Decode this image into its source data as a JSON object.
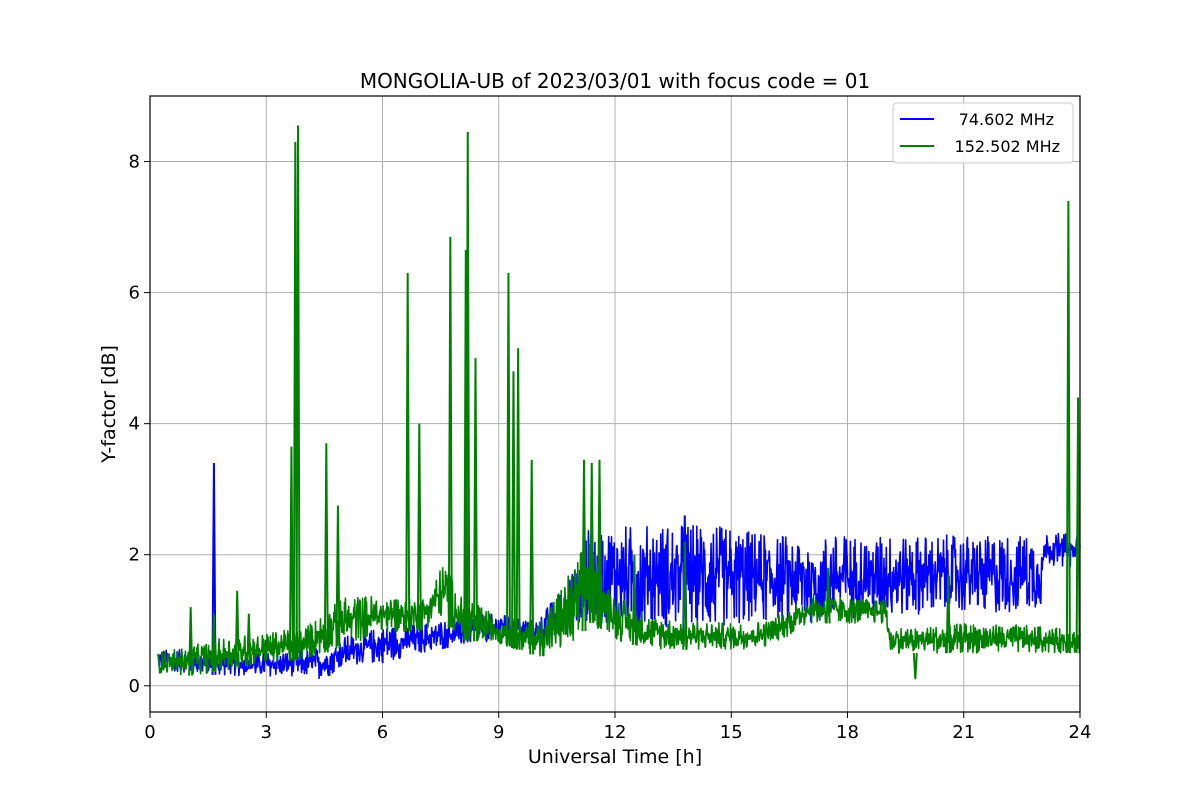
{
  "chart_data": {
    "type": "line",
    "title": "MONGOLIA-UB of 2023/03/01 with focus code = 01",
    "xlabel": "Universal Time [h]",
    "ylabel": "Y-factor [dB]",
    "xlim": [
      0,
      24
    ],
    "ylim": [
      -0.4,
      9.0
    ],
    "xticks": [
      "0",
      "3",
      "6",
      "9",
      "12",
      "15",
      "18",
      "21",
      "24"
    ],
    "yticks": [
      "0",
      "2",
      "4",
      "6",
      "8"
    ],
    "grid": true,
    "legend_position": "top-right",
    "series": [
      {
        "name": "74.602 MHz",
        "color": "#0000ff",
        "low": [
          [
            0.2,
            0.25
          ],
          [
            1.0,
            0.2
          ],
          [
            2.0,
            0.15
          ],
          [
            3.0,
            0.15
          ],
          [
            4.0,
            0.15
          ],
          [
            4.5,
            0.1
          ],
          [
            5.0,
            0.3
          ],
          [
            6.0,
            0.35
          ],
          [
            7.0,
            0.5
          ],
          [
            8.0,
            0.6
          ],
          [
            9.0,
            0.7
          ],
          [
            10.0,
            0.65
          ],
          [
            11.0,
            0.8
          ],
          [
            11.3,
            1.0
          ],
          [
            12.0,
            0.9
          ],
          [
            13.0,
            0.9
          ],
          [
            14.0,
            0.85
          ],
          [
            15.0,
            0.9
          ],
          [
            16.0,
            1.0
          ],
          [
            17.0,
            0.95
          ],
          [
            18.0,
            1.0
          ],
          [
            19.0,
            1.05
          ],
          [
            20.0,
            1.1
          ],
          [
            21.0,
            1.1
          ],
          [
            22.0,
            1.1
          ],
          [
            23.0,
            1.2
          ],
          [
            23.1,
            1.85
          ],
          [
            24.0,
            1.8
          ]
        ],
        "high": [
          [
            0.2,
            0.55
          ],
          [
            1.0,
            0.55
          ],
          [
            2.0,
            0.5
          ],
          [
            3.0,
            0.5
          ],
          [
            4.0,
            0.55
          ],
          [
            4.5,
            0.6
          ],
          [
            5.0,
            0.75
          ],
          [
            6.0,
            0.9
          ],
          [
            7.0,
            0.95
          ],
          [
            8.0,
            1.05
          ],
          [
            9.0,
            1.1
          ],
          [
            10.0,
            1.0
          ],
          [
            11.0,
            1.8
          ],
          [
            11.3,
            2.4
          ],
          [
            12.0,
            2.45
          ],
          [
            13.0,
            2.45
          ],
          [
            14.0,
            2.5
          ],
          [
            15.0,
            2.4
          ],
          [
            16.0,
            2.35
          ],
          [
            17.0,
            2.3
          ],
          [
            18.0,
            2.3
          ],
          [
            19.0,
            2.3
          ],
          [
            20.0,
            2.3
          ],
          [
            21.0,
            2.3
          ],
          [
            22.0,
            2.3
          ],
          [
            23.0,
            2.3
          ],
          [
            23.1,
            2.35
          ],
          [
            24.0,
            2.3
          ]
        ],
        "spikes": [
          [
            1.65,
            3.4
          ],
          [
            11.4,
            2.55
          ],
          [
            13.8,
            2.6
          ]
        ]
      },
      {
        "name": "152.502 MHz",
        "color": "#008000",
        "low": [
          [
            0.2,
            0.2
          ],
          [
            1.0,
            0.15
          ],
          [
            2.0,
            0.25
          ],
          [
            3.0,
            0.35
          ],
          [
            4.0,
            0.4
          ],
          [
            5.0,
            0.6
          ],
          [
            6.0,
            0.8
          ],
          [
            7.0,
            0.85
          ],
          [
            7.6,
            1.0
          ],
          [
            8.0,
            0.7
          ],
          [
            9.0,
            0.65
          ],
          [
            10.0,
            0.45
          ],
          [
            11.0,
            0.5
          ],
          [
            11.3,
            1.0
          ],
          [
            12.0,
            0.7
          ],
          [
            13.0,
            0.55
          ],
          [
            14.0,
            0.55
          ],
          [
            15.0,
            0.55
          ],
          [
            16.0,
            0.6
          ],
          [
            17.0,
            0.95
          ],
          [
            18.0,
            0.95
          ],
          [
            19.0,
            0.95
          ],
          [
            19.1,
            0.5
          ],
          [
            20.0,
            0.5
          ],
          [
            21.0,
            0.5
          ],
          [
            22.0,
            0.5
          ],
          [
            23.0,
            0.5
          ],
          [
            24.0,
            0.5
          ]
        ],
        "high": [
          [
            0.2,
            0.5
          ],
          [
            1.0,
            0.6
          ],
          [
            2.0,
            0.75
          ],
          [
            3.0,
            0.8
          ],
          [
            4.0,
            0.9
          ],
          [
            5.0,
            1.35
          ],
          [
            6.0,
            1.4
          ],
          [
            7.0,
            1.3
          ],
          [
            7.6,
            1.9
          ],
          [
            8.0,
            1.4
          ],
          [
            9.0,
            1.05
          ],
          [
            10.0,
            0.95
          ],
          [
            11.0,
            1.9
          ],
          [
            11.3,
            2.3
          ],
          [
            12.0,
            1.4
          ],
          [
            13.0,
            1.05
          ],
          [
            14.0,
            1.0
          ],
          [
            15.0,
            0.95
          ],
          [
            16.0,
            1.0
          ],
          [
            17.0,
            1.4
          ],
          [
            18.0,
            1.35
          ],
          [
            19.0,
            1.3
          ],
          [
            19.1,
            0.9
          ],
          [
            20.0,
            0.9
          ],
          [
            21.0,
            0.95
          ],
          [
            22.0,
            0.95
          ],
          [
            23.0,
            0.9
          ],
          [
            24.0,
            0.85
          ]
        ],
        "spikes": [
          [
            1.05,
            1.2
          ],
          [
            1.65,
            1.1
          ],
          [
            2.25,
            1.45
          ],
          [
            2.55,
            1.1
          ],
          [
            3.65,
            3.65
          ],
          [
            3.75,
            8.3
          ],
          [
            3.82,
            8.55
          ],
          [
            4.55,
            3.7
          ],
          [
            4.85,
            2.75
          ],
          [
            6.65,
            6.3
          ],
          [
            6.95,
            4.0
          ],
          [
            7.75,
            6.85
          ],
          [
            8.15,
            6.65
          ],
          [
            8.2,
            8.45
          ],
          [
            8.4,
            5.0
          ],
          [
            9.25,
            6.3
          ],
          [
            9.38,
            4.8
          ],
          [
            9.5,
            5.15
          ],
          [
            9.85,
            3.45
          ],
          [
            11.2,
            3.45
          ],
          [
            11.4,
            3.4
          ],
          [
            11.6,
            3.45
          ],
          [
            12.5,
            2.0
          ],
          [
            13.8,
            2.2
          ],
          [
            17.5,
            1.8
          ],
          [
            19.75,
            0.1
          ],
          [
            20.6,
            1.7
          ],
          [
            23.7,
            7.4
          ],
          [
            23.95,
            4.4
          ]
        ]
      }
    ]
  }
}
